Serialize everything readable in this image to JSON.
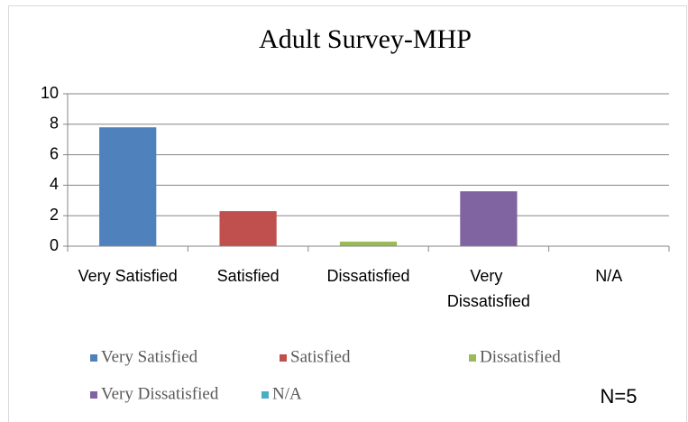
{
  "chart_data": {
    "type": "bar",
    "title": "Adult Survey-MHP",
    "categories": [
      "Very Satisfied",
      "Satisfied",
      "Dissatisfied",
      "Very Dissatisfied",
      "N/A"
    ],
    "values": [
      7.8,
      2.3,
      0.3,
      3.6,
      0
    ],
    "colors": [
      "#4f81bd",
      "#c0504d",
      "#9bbb59",
      "#8064a2",
      "#4bacc6"
    ],
    "ylim": [
      0,
      10
    ],
    "yticks": [
      0,
      2,
      4,
      6,
      8,
      10
    ],
    "grid": true,
    "legend": "bottom",
    "annotation": "N=5"
  }
}
